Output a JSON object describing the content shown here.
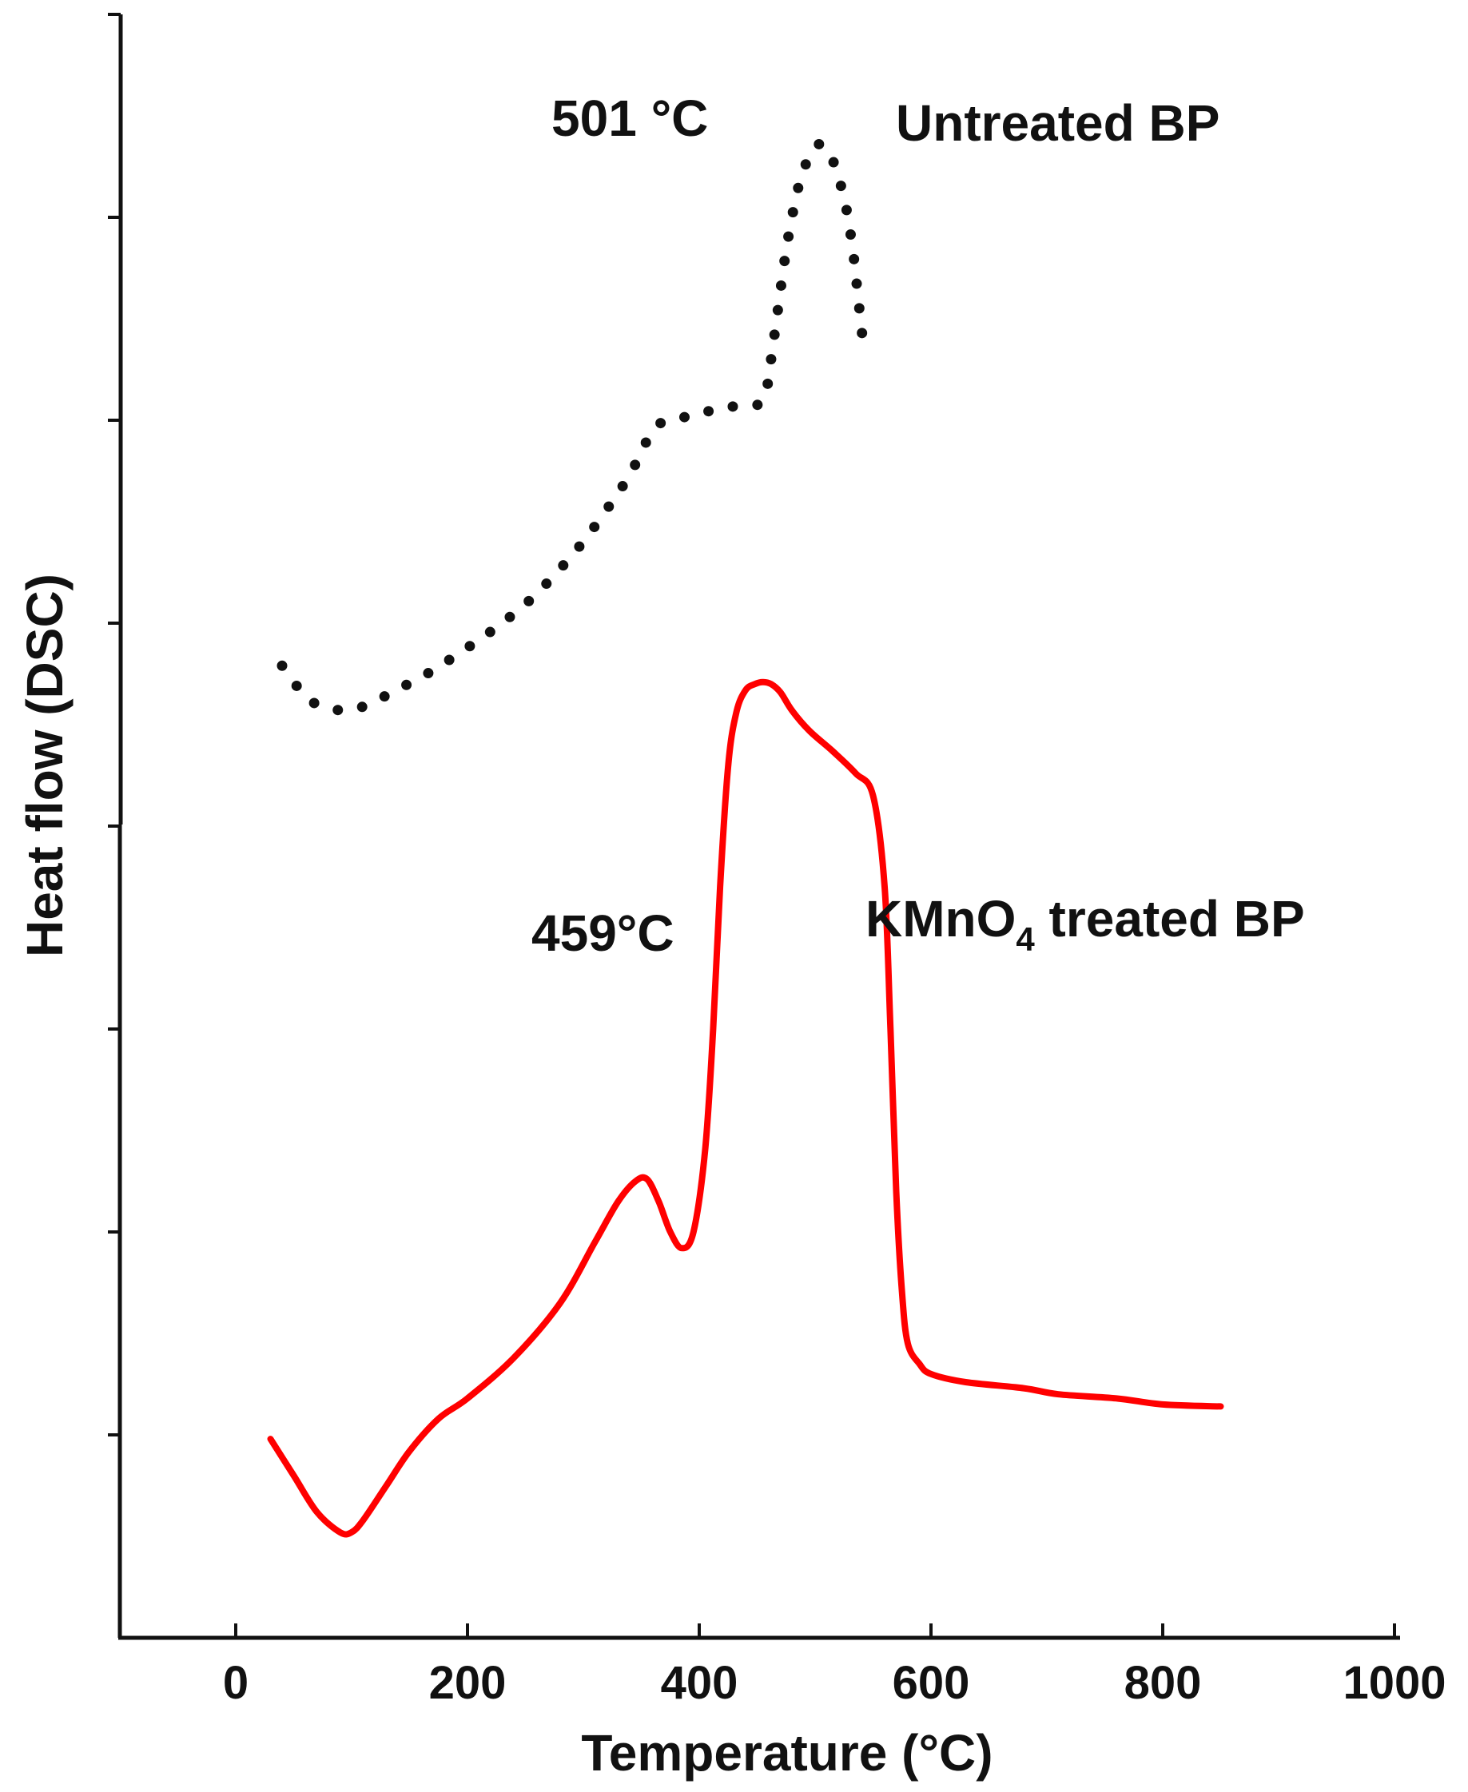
{
  "chart_data": {
    "type": "line",
    "title": "",
    "xlabel": "Temperature (°C)",
    "ylabel": "Heat flow (DSC)",
    "xlim": [
      -100,
      1000
    ],
    "ylim": [
      0,
      8
    ],
    "xticks": [
      0,
      200,
      400,
      600,
      800,
      1000
    ],
    "xtick_labels": [
      "0",
      "200",
      "400",
      "600",
      "800",
      "1000"
    ],
    "yticks": [
      1,
      2,
      3,
      4,
      5,
      6,
      7,
      8
    ],
    "grid": false,
    "colors": {
      "axis": "#111111",
      "untreated": "#111111",
      "treated": "#ff0000"
    },
    "series": [
      {
        "name": "Untreated BP",
        "style": "dotted",
        "color": "#111111",
        "x": [
          40,
          60,
          75,
          95,
          115,
          135,
          165,
          195,
          225,
          255,
          285,
          305,
          325,
          340,
          348,
          360,
          372,
          392,
          412,
          432,
          452,
          458,
          462,
          468,
          474,
          480,
          487,
          495,
          503,
          511,
          519,
          527,
          533,
          537,
          541
        ],
        "y": [
          4.79,
          4.64,
          4.59,
          4.57,
          4.6,
          4.66,
          4.75,
          4.86,
          4.98,
          5.12,
          5.3,
          5.44,
          5.6,
          5.73,
          5.82,
          5.95,
          6.0,
          6.02,
          6.05,
          6.07,
          6.08,
          6.15,
          6.3,
          6.55,
          6.8,
          7.0,
          7.18,
          7.3,
          7.36,
          7.33,
          7.22,
          7.04,
          6.82,
          6.61,
          6.4
        ]
      },
      {
        "name": "KMnO4 treated BP",
        "style": "solid",
        "color": "#ff0000",
        "x": [
          30,
          50,
          70,
          90,
          100,
          110,
          130,
          150,
          175,
          200,
          240,
          280,
          310,
          330,
          345,
          355,
          365,
          375,
          385,
          395,
          405,
          412,
          418,
          425,
          432,
          440,
          448,
          455,
          462,
          470,
          480,
          495,
          515,
          535,
          550,
          560,
          565,
          570,
          575,
          580,
          590,
          600,
          630,
          680,
          710,
          760,
          800,
          850
        ],
        "y": [
          0.98,
          0.8,
          0.62,
          0.52,
          0.52,
          0.58,
          0.75,
          0.92,
          1.08,
          1.18,
          1.38,
          1.65,
          1.95,
          2.15,
          2.25,
          2.26,
          2.15,
          2.0,
          1.92,
          2.0,
          2.4,
          3.0,
          3.7,
          4.3,
          4.56,
          4.67,
          4.7,
          4.71,
          4.7,
          4.66,
          4.57,
          4.47,
          4.37,
          4.26,
          4.15,
          3.7,
          3.0,
          2.2,
          1.7,
          1.45,
          1.35,
          1.3,
          1.26,
          1.23,
          1.2,
          1.18,
          1.15,
          1.14
        ]
      }
    ],
    "annotations": [
      {
        "text": "501 °C",
        "x": 350,
        "y": 7.5
      },
      {
        "text": "Untreated BP",
        "x": 570,
        "y": 7.46
      },
      {
        "text": "459°C",
        "x": 250,
        "y": 4.26
      },
      {
        "text": "KMnO",
        "sub": "4",
        "tail": " treated BP",
        "x": 545,
        "y": 4.4
      }
    ]
  }
}
